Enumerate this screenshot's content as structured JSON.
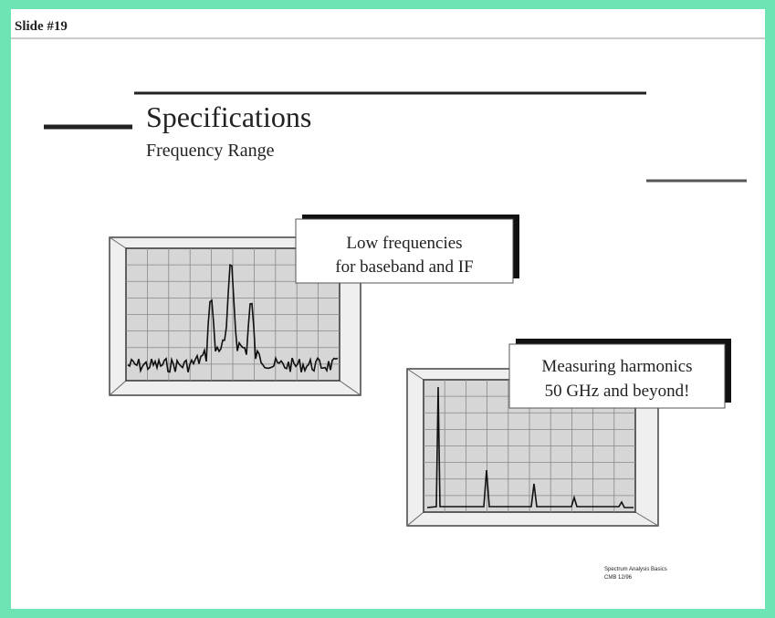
{
  "header": {
    "slide": "Slide #19"
  },
  "title": "Specifications",
  "subtitle": "Frequency Range",
  "callouts": [
    {
      "lines": [
        "Low frequencies",
        "for baseband and IF"
      ]
    },
    {
      "lines": [
        "Measuring harmonics",
        "50 GHz and beyond!"
      ]
    }
  ],
  "footer": {
    "lines": [
      "Spectrum Analysis Basics",
      "CMB  12/96"
    ]
  }
}
